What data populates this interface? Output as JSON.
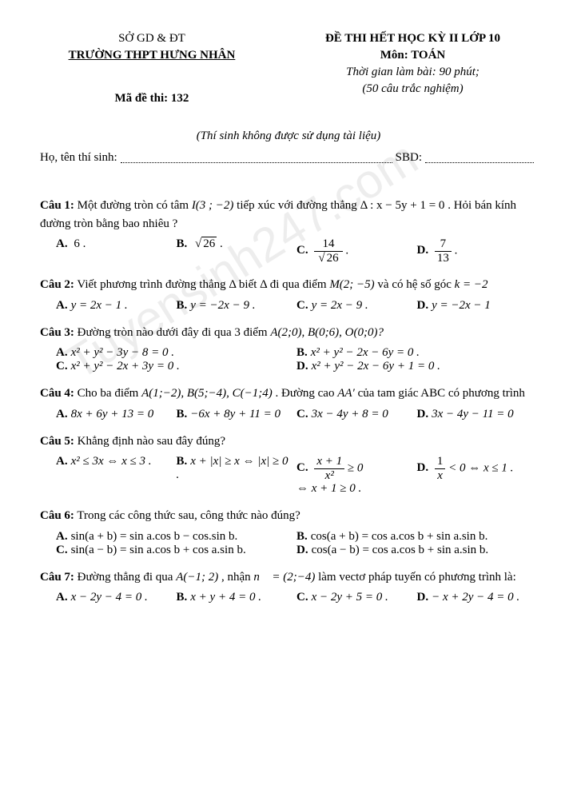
{
  "watermark": "Tuyensinh247.com",
  "header": {
    "department": "SỞ GD & ĐT",
    "school": "TRƯỜNG THPT HƯNG NHÂN",
    "exam_title": "ĐỀ THI HẾT HỌC KỲ II LỚP 10",
    "subject": "Môn: TOÁN",
    "time": "Thời gian làm bài: 90 phút;",
    "q_count": "(50 câu trắc nghiệm)",
    "code_label": "Mã đề thi: 132"
  },
  "note": "(Thí sinh không được sử dụng tài liệu)",
  "field_name": "Họ, tên thí sinh:",
  "field_sbd": "SBD:",
  "q1": {
    "label": "Câu 1:",
    "text1": " Một đường tròn có tâm ",
    "I": "I(3 ; −2)",
    "text2": " tiếp xúc với đường thẳng ",
    "delta": "Δ : x − 5y + 1 = 0",
    "text3": ". Hỏi bán kính đường tròn bằng bao nhiêu ?",
    "a": "6 .",
    "b_pref": "√",
    "b_rad": "26",
    "b_suf": " .",
    "c_num": "14",
    "c_den_pref": "√",
    "c_den_rad": "26",
    "c_suf": " .",
    "d_num": "7",
    "d_den": "13",
    "d_suf": " ."
  },
  "q2": {
    "label": "Câu 2:",
    "text1": " Viết phương trình đường thẳng Δ biết Δ đi qua điểm ",
    "M": "M(2; −5)",
    "text2": " và có hệ số góc ",
    "k": "k = −2",
    "a": "y = 2x − 1 .",
    "b": "y = −2x − 9 .",
    "c": "y = 2x − 9 .",
    "d": "y = −2x − 1"
  },
  "q3": {
    "label": "Câu 3:",
    "text": " Đường tròn nào dưới đây đi qua 3 điểm ",
    "pts": "A(2;0), B(0;6), O(0;0)?",
    "a": "x² + y² − 3y − 8 = 0 .",
    "b": "x² + y² − 2x − 6y = 0 .",
    "c": "x² + y² − 2x + 3y = 0 .",
    "d": "x² + y² − 2x − 6y + 1 = 0 ."
  },
  "q4": {
    "label": "Câu 4:",
    "text1": " Cho ba điểm ",
    "pts": "A(1;−2), B(5;−4), C(−1;4)",
    "text2": " . Đường cao ",
    "aa": "AA′",
    "text3": " của tam giác ABC có phương trình",
    "a": "8x + 6y + 13 = 0",
    "b": "−6x + 8y + 11 = 0",
    "c": "3x − 4y + 8 = 0",
    "d": "3x − 4y − 11 = 0"
  },
  "q5": {
    "label": "Câu 5:",
    "text": " Khẳng định nào sau đây đúng?",
    "a": "x² ≤ 3x ⇔ x ≤ 3 .",
    "b": "x + |x| ≥ x ⇔ |x| ≥ 0 .",
    "c_num": "x + 1",
    "c_den": "x²",
    "c_rest1": " ≥ 0",
    "c_rest2": "⇔ x + 1 ≥ 0 .",
    "d_num": "1",
    "d_den": "x",
    "d_rest": " < 0 ⇔ x ≤ 1 ."
  },
  "q6": {
    "label": "Câu 6:",
    "text": " Trong các công thức sau, công thức nào đúng?",
    "a": "sin(a + b) = sin a.cos b − cos.sin b.",
    "b": "cos(a + b) = cos a.cos b + sin a.sin b.",
    "c": "sin(a − b) = sin a.cos b + cos a.sin b.",
    "d": "cos(a − b) = cos a.cos b + sin a.sin b."
  },
  "q7": {
    "label": "Câu 7:",
    "text1": " Đường thẳng đi qua ",
    "A": "A(−1; 2)",
    "text2": " , nhận ",
    "n": "n⃗ = (2;−4)",
    "text3": " làm vectơ pháp tuyến có phương trình là:",
    "a": "x − 2y − 4 = 0 .",
    "b": "x + y + 4 = 0 .",
    "c": "x − 2y + 5 = 0 .",
    "d": "− x + 2y − 4 = 0 ."
  },
  "labels": {
    "a": "A.",
    "b": "B.",
    "c": "C.",
    "d": "D."
  }
}
